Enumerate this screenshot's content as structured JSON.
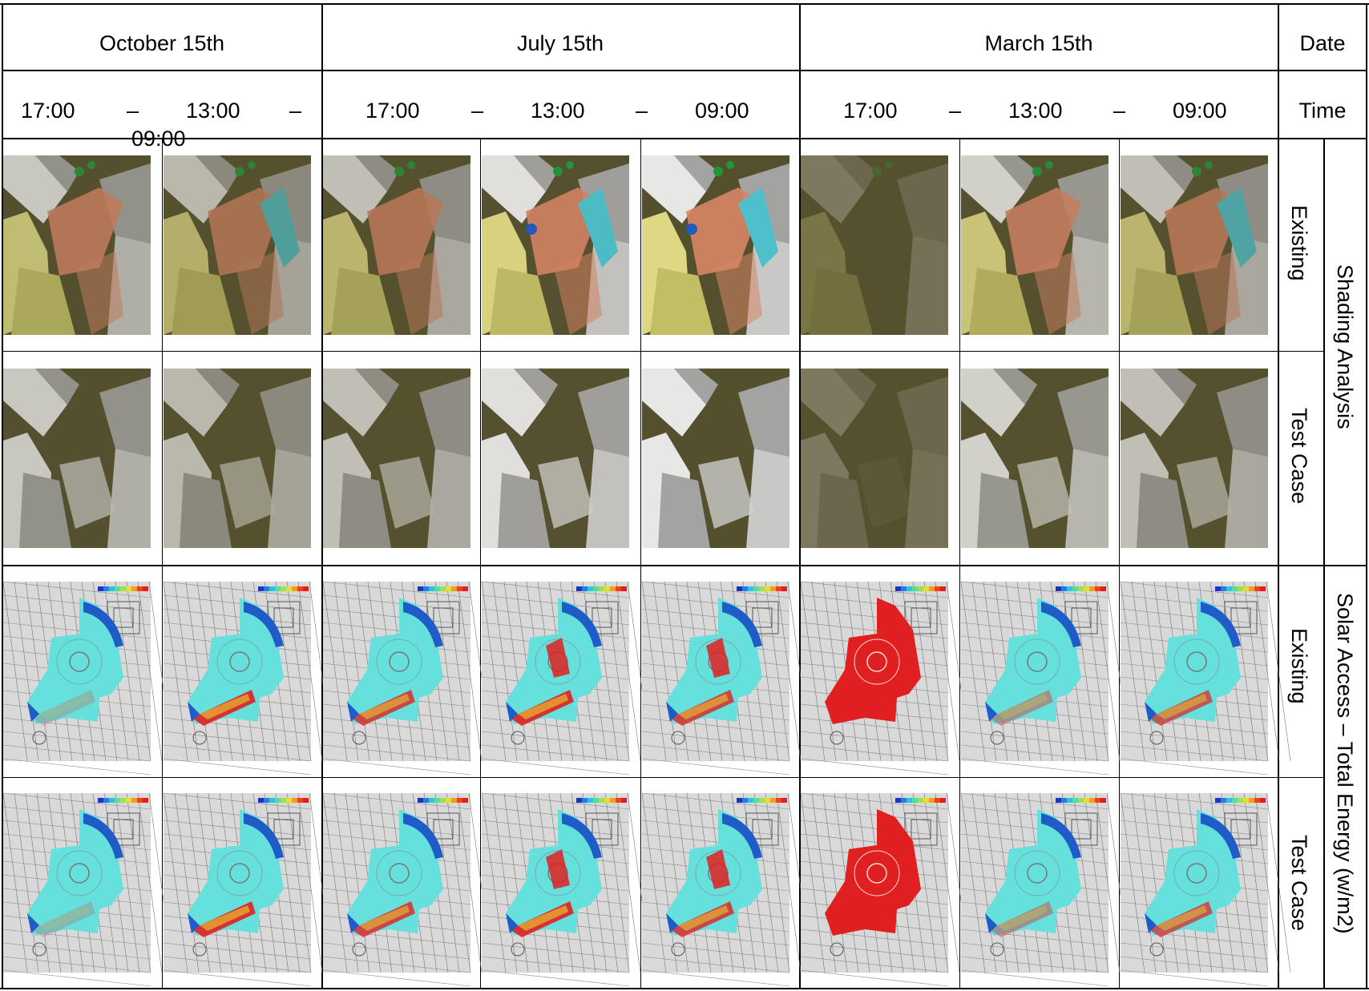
{
  "header": {
    "dates": [
      "October 15th",
      "July 15th",
      "March 15th"
    ],
    "date_label": "Date",
    "time_label": "Time",
    "times": {
      "october": [
        "17:00",
        "–",
        "13:00",
        "–",
        "09:00"
      ],
      "july": [
        "17:00",
        "–",
        "13:00",
        "–",
        "09:00"
      ],
      "march": [
        "17:00",
        "–",
        "13:00",
        "–",
        "09:00"
      ]
    }
  },
  "rows": {
    "existing": "Existing",
    "test_case": "Test Case"
  },
  "groups": {
    "shading": "Shading Analysis",
    "solar": "Solar Access – Total Energy (w/m2)"
  },
  "colors": {
    "ground": "#55512f",
    "building_light": "#f0f0f0",
    "building_mid": "#a8a8a8",
    "yellow": "#e6e08a",
    "salmon": "#e0886a",
    "cyan": "#4cc8d4",
    "tree": "#1e9a3a",
    "map_bg": "#d9d9d9",
    "solar_cyan": "#66e0dc",
    "solar_blue": "#1e5cc8",
    "solar_red": "#e02020",
    "solar_yellow": "#f0e030"
  }
}
